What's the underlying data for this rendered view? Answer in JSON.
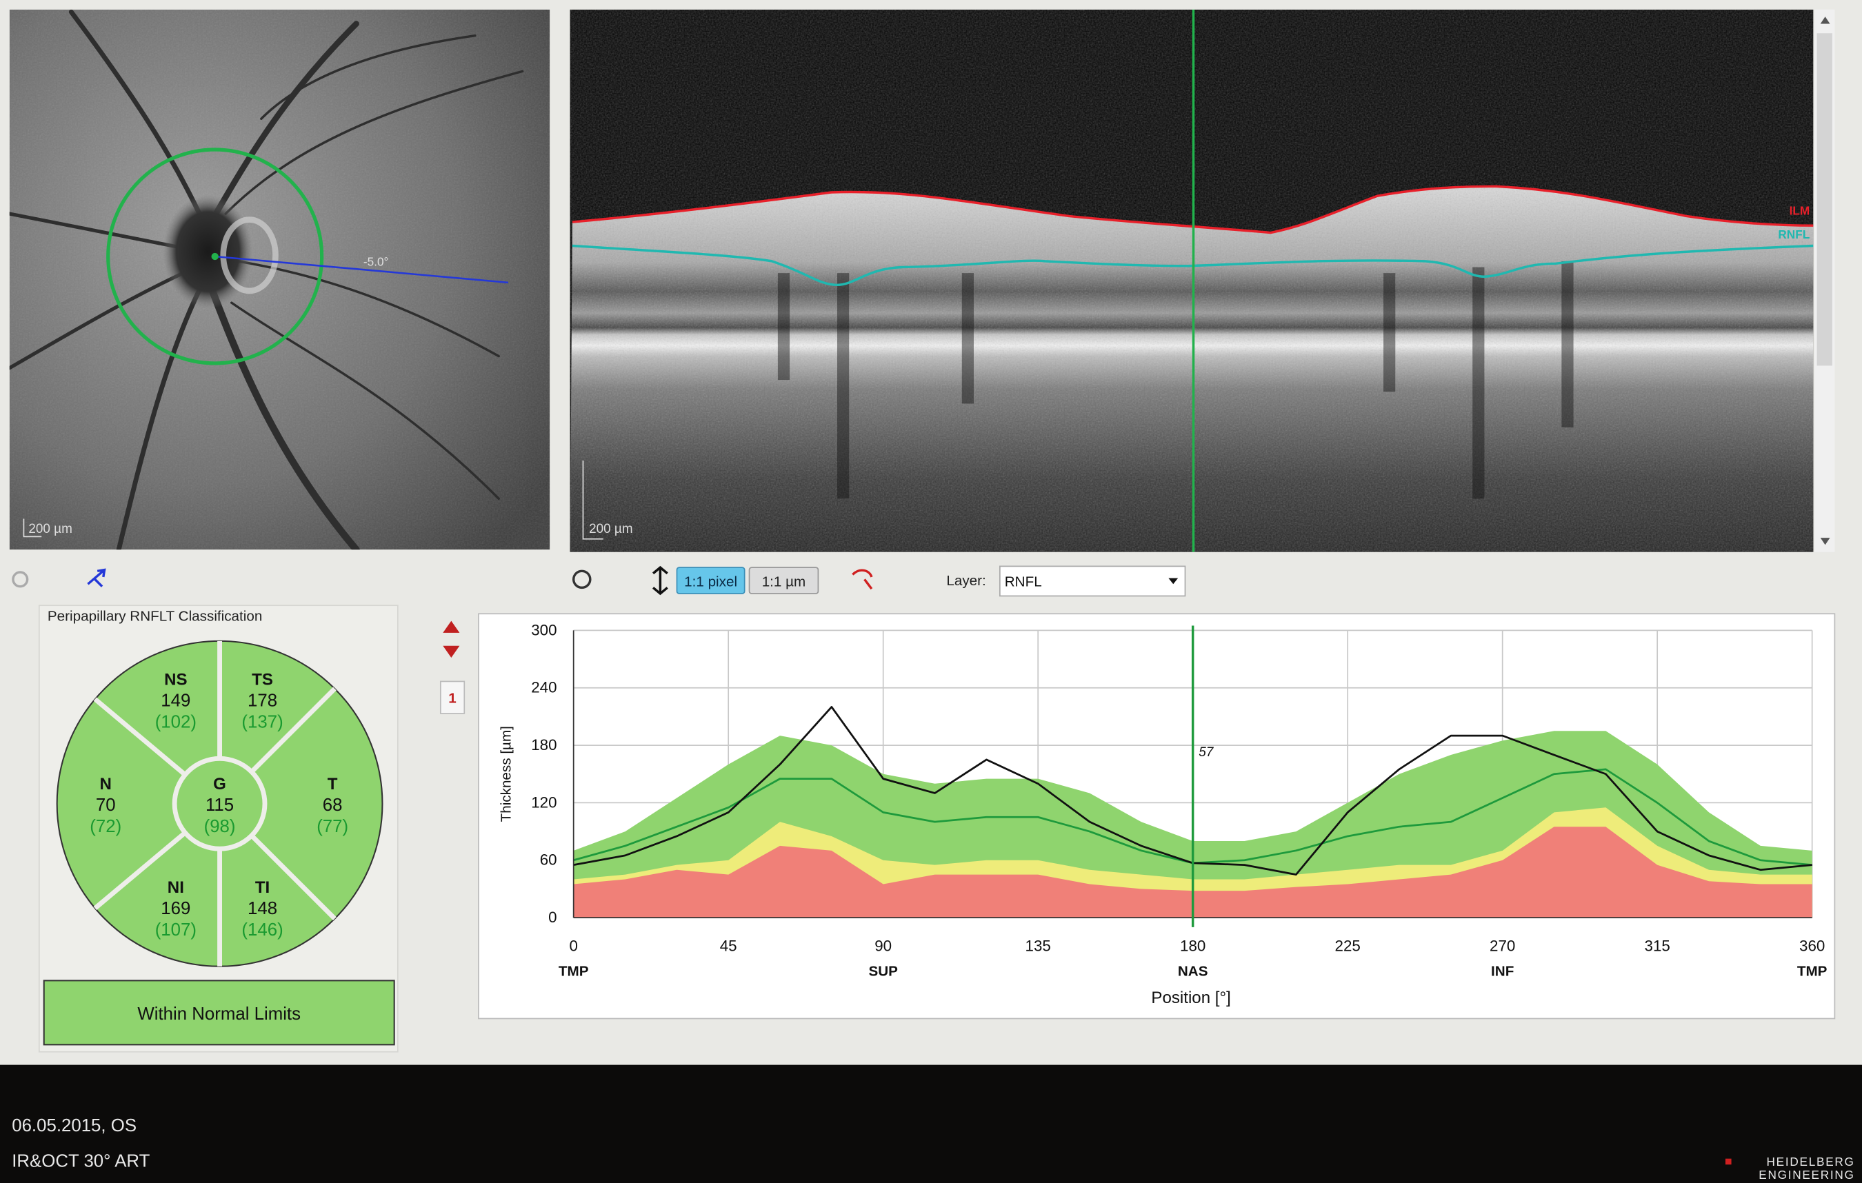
{
  "fundus": {
    "angle_label": "-5.0°",
    "scale_label": "200 µm"
  },
  "oct": {
    "layer_labels": [
      "ILM",
      "RNFL"
    ],
    "scale_label": "200 µm"
  },
  "toolbar": {
    "zoom_buttons": [
      "1:1 pixel",
      "1:1 µm"
    ],
    "layer_label": "Layer:",
    "layer_value": "RNFL"
  },
  "classification": {
    "title": "Peripapillary RNFLT Classification",
    "sectors": [
      {
        "name": "NS",
        "value": 149,
        "reference": "(102)"
      },
      {
        "name": "TS",
        "value": 178,
        "reference": "(137)"
      },
      {
        "name": "N",
        "value": 70,
        "reference": "(72)"
      },
      {
        "name": "G",
        "value": 115,
        "reference": "(98)"
      },
      {
        "name": "T",
        "value": 68,
        "reference": "(77)"
      },
      {
        "name": "NI",
        "value": 169,
        "reference": "(107)"
      },
      {
        "name": "TI",
        "value": 148,
        "reference": "(146)"
      }
    ],
    "result": "Within Normal Limits"
  },
  "page_indicator": "1",
  "chart_data": {
    "type": "line",
    "x": [
      0,
      15,
      30,
      45,
      60,
      75,
      90,
      105,
      120,
      135,
      150,
      165,
      180,
      195,
      210,
      225,
      240,
      255,
      270,
      285,
      300,
      315,
      330,
      345,
      360
    ],
    "xlim": [
      0,
      360
    ],
    "ylim": [
      0,
      300
    ],
    "xticks": [
      0,
      45,
      90,
      135,
      180,
      225,
      270,
      315,
      360
    ],
    "yticks": [
      0,
      60,
      120,
      180,
      240,
      300
    ],
    "grid": true,
    "x_label": "Position [°]",
    "y_label": "Thickness [µm]",
    "x_region_labels": [
      {
        "value": 0,
        "label": "TMP"
      },
      {
        "value": 90,
        "label": "SUP"
      },
      {
        "value": 180,
        "label": "NAS"
      },
      {
        "value": 270,
        "label": "INF"
      },
      {
        "value": 360,
        "label": "TMP"
      }
    ],
    "cursor": {
      "x": 180,
      "value": 57
    },
    "series": [
      {
        "style": "area",
        "color": "#8fd46e",
        "values": [
          70,
          90,
          125,
          160,
          190,
          180,
          150,
          140,
          145,
          145,
          130,
          100,
          80,
          80,
          90,
          120,
          150,
          170,
          185,
          195,
          195,
          160,
          110,
          75,
          70
        ]
      },
      {
        "style": "area",
        "color": "#eeec7a",
        "values": [
          40,
          45,
          55,
          60,
          100,
          85,
          60,
          55,
          60,
          60,
          50,
          45,
          40,
          40,
          45,
          50,
          55,
          55,
          70,
          110,
          115,
          75,
          50,
          45,
          45
        ]
      },
      {
        "style": "area",
        "color": "#f08078",
        "values": [
          35,
          40,
          50,
          45,
          75,
          70,
          35,
          45,
          45,
          45,
          35,
          30,
          28,
          28,
          32,
          35,
          40,
          45,
          60,
          95,
          95,
          55,
          38,
          35,
          35
        ]
      },
      {
        "style": "line",
        "color": "#1e9a3c",
        "values": [
          60,
          75,
          95,
          115,
          145,
          145,
          110,
          100,
          105,
          105,
          90,
          70,
          57,
          60,
          70,
          85,
          95,
          100,
          125,
          150,
          155,
          120,
          80,
          60,
          55
        ]
      },
      {
        "style": "line",
        "color": "#111111",
        "values": [
          55,
          65,
          85,
          110,
          160,
          220,
          145,
          130,
          165,
          140,
          100,
          75,
          57,
          55,
          45,
          110,
          155,
          190,
          190,
          170,
          150,
          90,
          65,
          50,
          55
        ]
      }
    ]
  },
  "footer": {
    "lines": [
      "06.05.2015, OS",
      "IR&OCT 30° ART"
    ],
    "logo": [
      "HEIDELBERG",
      "ENGINEERING"
    ]
  }
}
